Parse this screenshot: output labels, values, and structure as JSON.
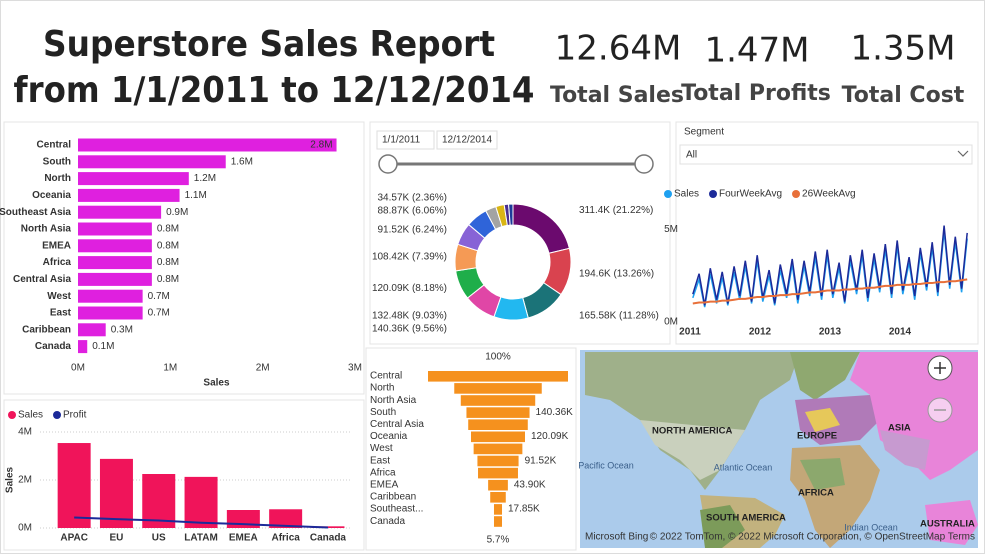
{
  "header": {
    "title_line1": "Superstore Sales Report",
    "title_line2": "from 1/1/2011 to 12/12/2014"
  },
  "kpis": [
    {
      "value": "12.64M",
      "label": "Total Sales"
    },
    {
      "value": "1.47M",
      "label": "Total Profits"
    },
    {
      "value": "1.35M",
      "label": "Total Cost"
    }
  ],
  "date_slicer": {
    "start": "1/1/2011",
    "end": "12/12/2014"
  },
  "segment_slicer": {
    "label": "Segment",
    "selected": "All"
  },
  "chart_data": [
    {
      "type": "bar",
      "orientation": "horizontal",
      "x_label": "Sales",
      "color": "#df20df",
      "grid": false,
      "categories": [
        "Central",
        "South",
        "North",
        "Oceania",
        "Southeast Asia",
        "North Asia",
        "EMEA",
        "Africa",
        "Central Asia",
        "West",
        "East",
        "Caribbean",
        "Canada"
      ],
      "values": [
        2800000,
        1600000,
        1200000,
        1100000,
        900000,
        800000,
        800000,
        800000,
        800000,
        700000,
        700000,
        300000,
        100000
      ],
      "value_labels": [
        "2.8M",
        "1.6M",
        "1.2M",
        "1.1M",
        "0.9M",
        "0.8M",
        "0.8M",
        "0.8M",
        "0.8M",
        "0.7M",
        "0.7M",
        "0.3M",
        "0.1M"
      ],
      "xlim": [
        0,
        3000000
      ],
      "xticks": [
        {
          "value": 0,
          "label": "0M"
        },
        {
          "value": 1000000,
          "label": "1M"
        },
        {
          "value": 2000000,
          "label": "2M"
        },
        {
          "value": 3000000,
          "label": "3M"
        }
      ]
    },
    {
      "type": "donut",
      "values": [
        311400,
        194600,
        165580,
        140360,
        132480,
        120090,
        108420,
        91520,
        88870,
        43900,
        34570,
        17850,
        17820
      ],
      "value_labels": [
        "311.4K (21.22%)",
        "194.6K (13.26%)",
        "165.58K (11.28%)",
        "140.36K (9.56%)",
        "132.48K (9.03%)",
        "120.09K (8.18%)",
        "108.42K (7.39%)",
        "91.52K (6.24%)",
        "88.87K (6.06%)",
        null,
        "34.57K (2.36%)",
        null,
        null
      ],
      "colors": [
        "#6b0a6e",
        "#d9434f",
        "#1b7378",
        "#22b8f0",
        "#e046a6",
        "#1fae4a",
        "#f59a55",
        "#8763d6",
        "#2f64d9",
        "#a3a3a3",
        "#d9b514",
        "#4a2f8f",
        "#1d3a9a"
      ]
    },
    {
      "type": "funnel",
      "color": "#f5911e",
      "top_label": "100%",
      "bottom_label": "5.7%",
      "categories": [
        "Central",
        "North",
        "North Asia",
        "South",
        "Central Asia",
        "Oceania",
        "West",
        "East",
        "Africa",
        "EMEA",
        "Caribbean",
        "Southeast...",
        "Canada"
      ],
      "values": [
        311400,
        194600,
        165580,
        140360,
        132480,
        120090,
        108420,
        91520,
        88870,
        43900,
        34570,
        17850,
        17820
      ],
      "value_labels": [
        null,
        null,
        null,
        "140.36K",
        null,
        "120.09K",
        null,
        "91.52K",
        null,
        "43.90K",
        null,
        "17.85K",
        null
      ]
    },
    {
      "type": "line",
      "grid": false,
      "x": [
        2011.04,
        2011.13,
        2011.21,
        2011.29,
        2011.38,
        2011.46,
        2011.54,
        2011.63,
        2011.71,
        2011.79,
        2011.88,
        2011.96,
        2012.04,
        2012.13,
        2012.21,
        2012.29,
        2012.38,
        2012.46,
        2012.54,
        2012.63,
        2012.71,
        2012.79,
        2012.88,
        2012.96,
        2013.04,
        2013.13,
        2013.21,
        2013.29,
        2013.38,
        2013.46,
        2013.54,
        2013.63,
        2013.71,
        2013.79,
        2013.88,
        2013.96,
        2014.04,
        2014.13,
        2014.21,
        2014.29,
        2014.38,
        2014.46,
        2014.54,
        2014.63,
        2014.71,
        2014.79,
        2014.88,
        2014.96
      ],
      "xlim": [
        2011,
        2015
      ],
      "xticks": [
        2011,
        2012,
        2013,
        2014
      ],
      "ylim": [
        0,
        5500000
      ],
      "yticks": [
        {
          "value": 0,
          "label": "0M"
        },
        {
          "value": 5000000,
          "label": "5M"
        }
      ],
      "series": [
        {
          "name": "Sales",
          "color": "#1ea0f0",
          "values": [
            1300000,
            2300000,
            800000,
            2600000,
            1000000,
            2400000,
            900000,
            2700000,
            1200000,
            3000000,
            1000000,
            3300000,
            1100000,
            2500000,
            900000,
            2800000,
            1300000,
            3100000,
            1000000,
            3000000,
            1400000,
            3500000,
            1200000,
            3600000,
            1300000,
            2900000,
            1000000,
            3300000,
            1500000,
            3600000,
            1100000,
            3400000,
            1600000,
            3900000,
            1300000,
            4100000,
            1500000,
            3200000,
            1200000,
            3700000,
            1700000,
            4000000,
            1400000,
            4900000,
            1800000,
            4300000,
            1600000,
            4500000
          ]
        },
        {
          "name": "FourWeekAvg",
          "color": "#1c2a99",
          "values": [
            1500000,
            2600000,
            900000,
            2900000,
            1200000,
            2700000,
            1000000,
            3000000,
            1400000,
            3300000,
            1100000,
            3600000,
            1300000,
            2800000,
            1000000,
            3100000,
            1500000,
            3400000,
            1200000,
            3300000,
            1600000,
            3800000,
            1400000,
            3900000,
            1500000,
            3200000,
            1100000,
            3600000,
            1700000,
            3900000,
            1300000,
            3700000,
            1800000,
            4200000,
            1500000,
            4400000,
            1700000,
            3500000,
            1400000,
            4000000,
            1900000,
            4300000,
            1600000,
            5200000,
            2000000,
            4600000,
            1800000,
            4800000
          ]
        },
        {
          "name": "26WeekAvg",
          "color": "#e8703a",
          "values": [
            1000000,
            1050000,
            1050000,
            1100000,
            1100000,
            1150000,
            1150000,
            1200000,
            1250000,
            1250000,
            1300000,
            1350000,
            1350000,
            1400000,
            1400000,
            1450000,
            1450000,
            1500000,
            1500000,
            1550000,
            1600000,
            1600000,
            1650000,
            1700000,
            1700000,
            1700000,
            1750000,
            1750000,
            1800000,
            1800000,
            1850000,
            1850000,
            1900000,
            1950000,
            1950000,
            2000000,
            2000000,
            2000000,
            2050000,
            2050000,
            2100000,
            2100000,
            2150000,
            2150000,
            2200000,
            2200000,
            2250000,
            2300000
          ]
        }
      ]
    },
    {
      "type": "combo",
      "y_label": "Sales",
      "grid": true,
      "categories": [
        "APAC",
        "EU",
        "US",
        "LATAM",
        "EMEA",
        "Africa",
        "Canada"
      ],
      "ylim": [
        0,
        4000000
      ],
      "yticks": [
        {
          "value": 0,
          "label": "0M"
        },
        {
          "value": 2000000,
          "label": "2M"
        },
        {
          "value": 4000000,
          "label": "4M"
        }
      ],
      "series": [
        {
          "name": "Sales",
          "kind": "bar",
          "color": "#f0145a",
          "values": [
            3540000,
            2880000,
            2250000,
            2130000,
            750000,
            780000,
            70000
          ]
        },
        {
          "name": "Profit",
          "kind": "line",
          "color": "#1c2a99",
          "values": [
            440000,
            370000,
            310000,
            220000,
            160000,
            90000,
            20000
          ]
        }
      ]
    }
  ],
  "map": {
    "north_america": "NORTH AMERICA",
    "europe": "EUROPE",
    "asia": "ASIA",
    "africa": "AFRICA",
    "south_america": "SOUTH AMERICA",
    "australia": "AUSTRALIA",
    "pacific": "Pacific Ocean",
    "atlantic": "Atlantic Ocean",
    "indian": "Indian Ocean",
    "bing": "Microsoft Bing",
    "copyright": "© 2022 TomTom, © 2022 Microsoft Corporation, © OpenStreetMap  Terms"
  }
}
